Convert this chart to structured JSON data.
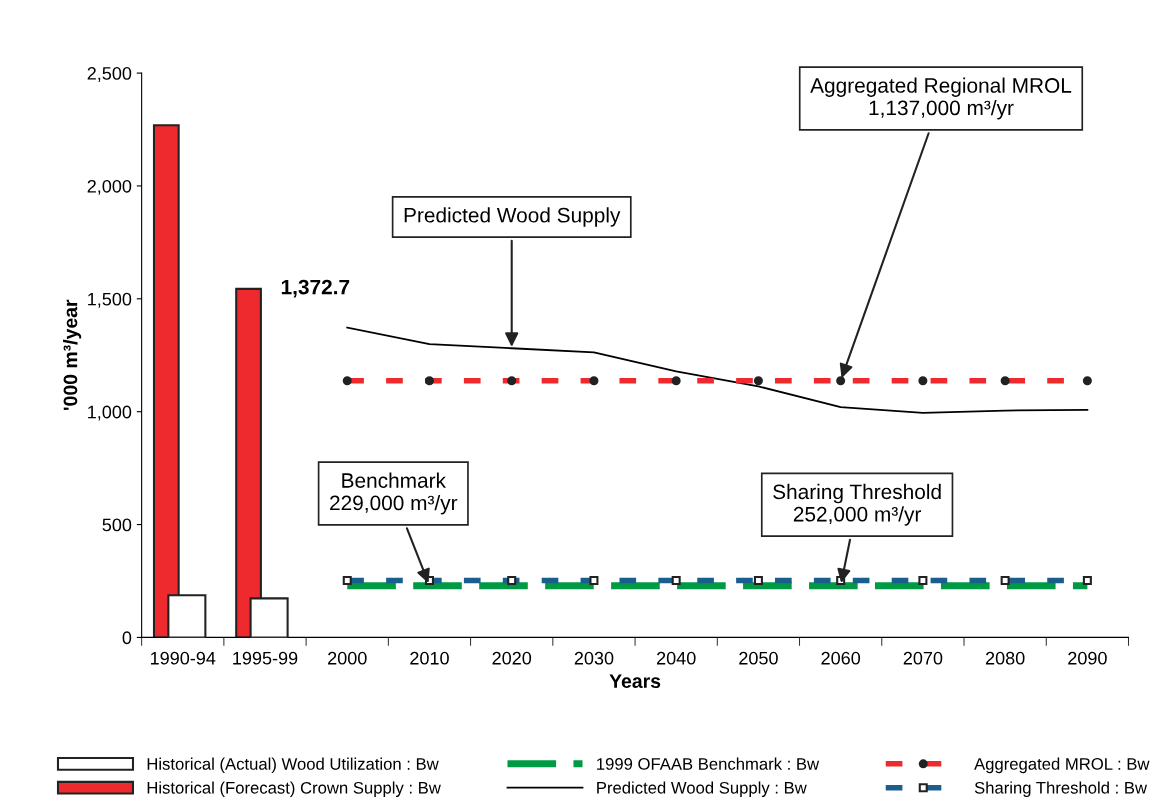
{
  "chart_data": {
    "type": "bar",
    "xlabel": "Years",
    "ylabel": "'000 m³/year",
    "categories": [
      "1990-94",
      "1995-99",
      "2000",
      "2010",
      "2020",
      "2030",
      "2040",
      "2050",
      "2060",
      "2070",
      "2080",
      "2090"
    ],
    "ylim": [
      0,
      2500
    ],
    "yticks": [
      {
        "value": 0,
        "label": "0"
      },
      {
        "value": 500,
        "label": "500"
      },
      {
        "value": 1000,
        "label": "1,000"
      },
      {
        "value": 1500,
        "label": "1,500"
      },
      {
        "value": 2000,
        "label": "2,000"
      },
      {
        "value": 2500,
        "label": "2,500"
      }
    ],
    "grid": false,
    "legend": "bottom",
    "series": [
      {
        "name": "Historical (Actual) Wood Utilization : Bw",
        "color": "#ffffff",
        "values": [
          187,
          173,
          null,
          null,
          null,
          null,
          null,
          null,
          null,
          null,
          null,
          null
        ]
      },
      {
        "name": "Historical (Forecast) Crown Supply : Bw",
        "color": "#ee2a2e",
        "values": [
          2269,
          1544,
          null,
          null,
          null,
          null,
          null,
          null,
          null,
          null,
          null,
          null
        ]
      },
      {
        "name": "1999 OFAAB Benchmark : Bw",
        "type": "line",
        "color": "#009a44",
        "line_style": "dashed",
        "marker": "none",
        "values": [
          null,
          null,
          229,
          229,
          229,
          229,
          229,
          229,
          229,
          229,
          229,
          229
        ]
      },
      {
        "name": "Predicted Wood Supply : Bw",
        "type": "line",
        "color": "#000000",
        "line_style": "solid",
        "marker": "none",
        "values": [
          null,
          null,
          1372.7,
          1299,
          1281,
          1263,
          1179,
          1112,
          1020,
          995,
          1005,
          1008
        ],
        "value_labels": [
          null,
          null,
          "1,372.7",
          null,
          null,
          null,
          null,
          null,
          null,
          null,
          null,
          null
        ]
      },
      {
        "name": "Aggregated MROL : Bw",
        "type": "line",
        "color": "#ee2a2e",
        "line_style": "dashed",
        "marker": "circle",
        "values": [
          null,
          null,
          1137,
          1137,
          1137,
          1137,
          1137,
          1137,
          1137,
          1137,
          1137,
          1137
        ]
      },
      {
        "name": "Sharing Threshold : Bw",
        "type": "line",
        "color": "#1a5e8e",
        "line_style": "dashed",
        "marker": "square",
        "values": [
          null,
          null,
          252,
          252,
          252,
          252,
          252,
          252,
          252,
          252,
          252,
          252
        ]
      }
    ],
    "annotations": [
      {
        "text": "Predicted Wood Supply",
        "x": "2020",
        "y": 1275
      },
      {
        "text": "Aggregated Regional MROL\n1,137,000 m³/yr",
        "x": "2060",
        "y": 1137
      },
      {
        "text": "Benchmark\n229,000 m³/yr",
        "x": "2010",
        "y": 229
      },
      {
        "text": "Sharing Threshold\n252,000 m³/yr",
        "x": "2060",
        "y": 229
      }
    ]
  }
}
